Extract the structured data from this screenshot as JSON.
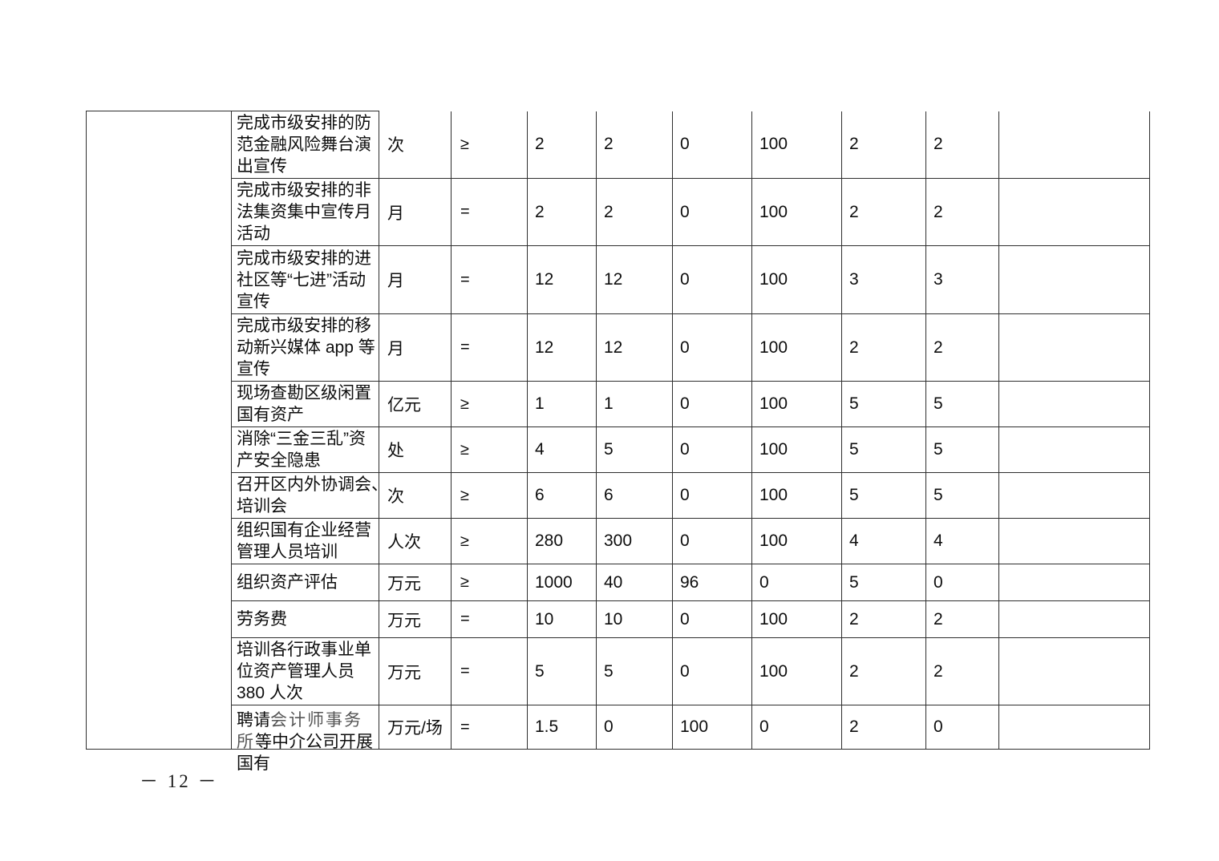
{
  "page": {
    "number": "－ 12 －"
  },
  "table": {
    "rows": [
      {
        "indicator_parts": [
          {
            "text": "完成市级安排的防\n范金融风险舞台演\n出宣传",
            "gray": false
          }
        ],
        "unit": "次",
        "operator": "≥",
        "values": [
          "2",
          "2",
          "0",
          "100",
          "2",
          "2"
        ],
        "note": ""
      },
      {
        "indicator_parts": [
          {
            "text": "完成市级安排的非\n法集资集中宣传月\n活动",
            "gray": false
          }
        ],
        "unit": "月",
        "operator": "=",
        "values": [
          "2",
          "2",
          "0",
          "100",
          "2",
          "2"
        ],
        "note": ""
      },
      {
        "indicator_parts": [
          {
            "text": "完成市级安排的进\n社区等“七进”活动\n宣传",
            "gray": false
          }
        ],
        "unit": "月",
        "operator": "=",
        "values": [
          "12",
          "12",
          "0",
          "100",
          "3",
          "3"
        ],
        "note": ""
      },
      {
        "indicator_parts": [
          {
            "text": "完成市级安排的移\n动新兴媒体 app 等\n宣传",
            "gray": false
          }
        ],
        "unit": "月",
        "operator": "=",
        "values": [
          "12",
          "12",
          "0",
          "100",
          "2",
          "2"
        ],
        "note": ""
      },
      {
        "indicator_parts": [
          {
            "text": "现场查勘区级闲置\n国有资产",
            "gray": false
          }
        ],
        "unit": "亿元",
        "operator": "≥",
        "values": [
          "1",
          "1",
          "0",
          "100",
          "5",
          "5"
        ],
        "note": ""
      },
      {
        "indicator_parts": [
          {
            "text": "消除“三金三乱”资\n产安全隐患",
            "gray": false
          }
        ],
        "unit": "处",
        "operator": "≥",
        "values": [
          "4",
          "5",
          "0",
          "100",
          "5",
          "5"
        ],
        "note": ""
      },
      {
        "indicator_parts": [
          {
            "text": "召开区内外协调会、\n培训会",
            "gray": false
          }
        ],
        "unit": "次",
        "operator": "≥",
        "values": [
          "6",
          "6",
          "0",
          "100",
          "5",
          "5"
        ],
        "note": ""
      },
      {
        "indicator_parts": [
          {
            "text": "组织国有企业经营\n管理人员培训",
            "gray": false
          }
        ],
        "unit": "人次",
        "operator": "≥",
        "values": [
          "280",
          "300",
          "0",
          "100",
          "4",
          "4"
        ],
        "note": ""
      },
      {
        "indicator_parts": [
          {
            "text": "组织资产评估",
            "gray": false
          }
        ],
        "unit": "万元",
        "operator": "≥",
        "values": [
          "1000",
          "40",
          "96",
          "0",
          "5",
          "0"
        ],
        "note": ""
      },
      {
        "indicator_parts": [
          {
            "text": "劳务费",
            "gray": false
          }
        ],
        "unit": "万元",
        "operator": "=",
        "values": [
          "10",
          "10",
          "0",
          "100",
          "2",
          "2"
        ],
        "note": ""
      },
      {
        "indicator_parts": [
          {
            "text": "培训各行政事业单\n位资产管理人员\n380 人次",
            "gray": false
          }
        ],
        "unit": "万元",
        "operator": "=",
        "values": [
          "5",
          "5",
          "0",
          "100",
          "2",
          "2"
        ],
        "note": ""
      },
      {
        "indicator_parts": [
          {
            "text": "聘请",
            "gray": false
          },
          {
            "text": "会计师事务\n所",
            "gray": true
          },
          {
            "text": "等中介公司开展\n国有",
            "gray": false
          }
        ],
        "unit": "万元/场",
        "operator": "=",
        "values": [
          "1.5",
          "0",
          "100",
          "0",
          "2",
          "0"
        ],
        "note": "",
        "overflow": true
      }
    ]
  }
}
